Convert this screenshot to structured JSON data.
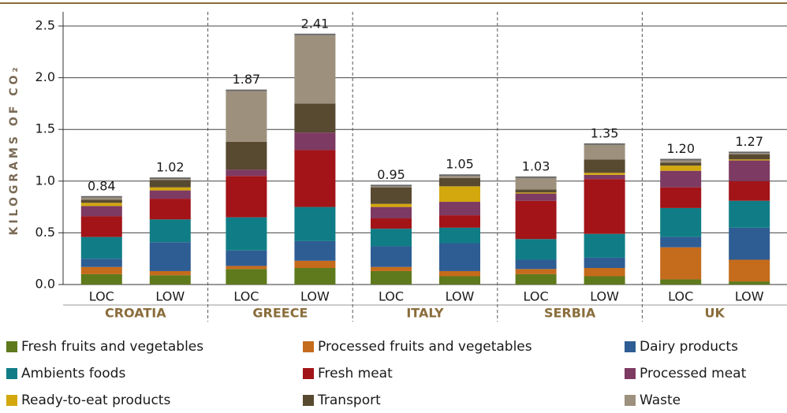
{
  "chart_data": {
    "type": "stacked-bar",
    "ylabel": "KILOGRAMS OF CO₂",
    "groups": [
      "CROATIA",
      "GREECE",
      "ITALY",
      "SERBIA",
      "UK"
    ],
    "categories": [
      "LOC",
      "LOW",
      "LOC",
      "LOW",
      "LOC",
      "LOW",
      "LOC",
      "LOW",
      "LOC",
      "LOW"
    ],
    "totals": [
      0.84,
      1.02,
      1.87,
      2.41,
      0.95,
      1.05,
      1.03,
      1.35,
      1.2,
      1.27
    ],
    "total_labels": [
      "0.84",
      "1.02",
      "1.87",
      "2.41",
      "0.95",
      "1.05",
      "1.03",
      "1.35",
      "1.20",
      "1.27"
    ],
    "series": [
      {
        "name": "Fresh fruits and vegetables",
        "color": "#5e7a1c",
        "values": [
          0.1,
          0.09,
          0.15,
          0.16,
          0.13,
          0.08,
          0.1,
          0.08,
          0.05,
          0.03
        ]
      },
      {
        "name": "Processed fruits and vegetables",
        "color": "#c56b1c",
        "values": [
          0.07,
          0.04,
          0.03,
          0.07,
          0.04,
          0.05,
          0.05,
          0.08,
          0.31,
          0.21
        ]
      },
      {
        "name": "Dairy products",
        "color": "#2e5d93",
        "values": [
          0.08,
          0.28,
          0.15,
          0.19,
          0.2,
          0.27,
          0.09,
          0.1,
          0.1,
          0.31
        ]
      },
      {
        "name": "Ambients foods",
        "color": "#107d86",
        "values": [
          0.21,
          0.22,
          0.32,
          0.33,
          0.17,
          0.15,
          0.2,
          0.23,
          0.28,
          0.26
        ]
      },
      {
        "name": "Fresh meat",
        "color": "#a21418",
        "values": [
          0.2,
          0.2,
          0.4,
          0.55,
          0.1,
          0.12,
          0.37,
          0.53,
          0.2,
          0.19
        ]
      },
      {
        "name": "Processed meat",
        "color": "#7d3a62",
        "values": [
          0.1,
          0.08,
          0.06,
          0.17,
          0.11,
          0.13,
          0.07,
          0.04,
          0.16,
          0.2
        ]
      },
      {
        "name": "Ready-to-eat products",
        "color": "#d2a80e",
        "values": [
          0.03,
          0.03,
          0,
          0,
          0.03,
          0.15,
          0.01,
          0.02,
          0.05,
          0.01
        ]
      },
      {
        "name": "Transport",
        "color": "#584931",
        "values": [
          0.03,
          0.07,
          0.27,
          0.28,
          0.16,
          0.08,
          0.03,
          0.13,
          0.03,
          0.05
        ]
      },
      {
        "name": "Waste",
        "color": "#9d917e",
        "values": [
          0.02,
          0.01,
          0.49,
          0.66,
          0.01,
          0.02,
          0.11,
          0.14,
          0.02,
          0.01
        ]
      }
    ],
    "ylim": [
      0,
      2.5
    ],
    "yticks": [
      {
        "value": 0,
        "label": "0.0"
      },
      0.5,
      {
        "value": 1,
        "label": "1.0"
      },
      1.5,
      {
        "value": 2,
        "label": "2.0"
      },
      2.5
    ],
    "grid": true
  }
}
